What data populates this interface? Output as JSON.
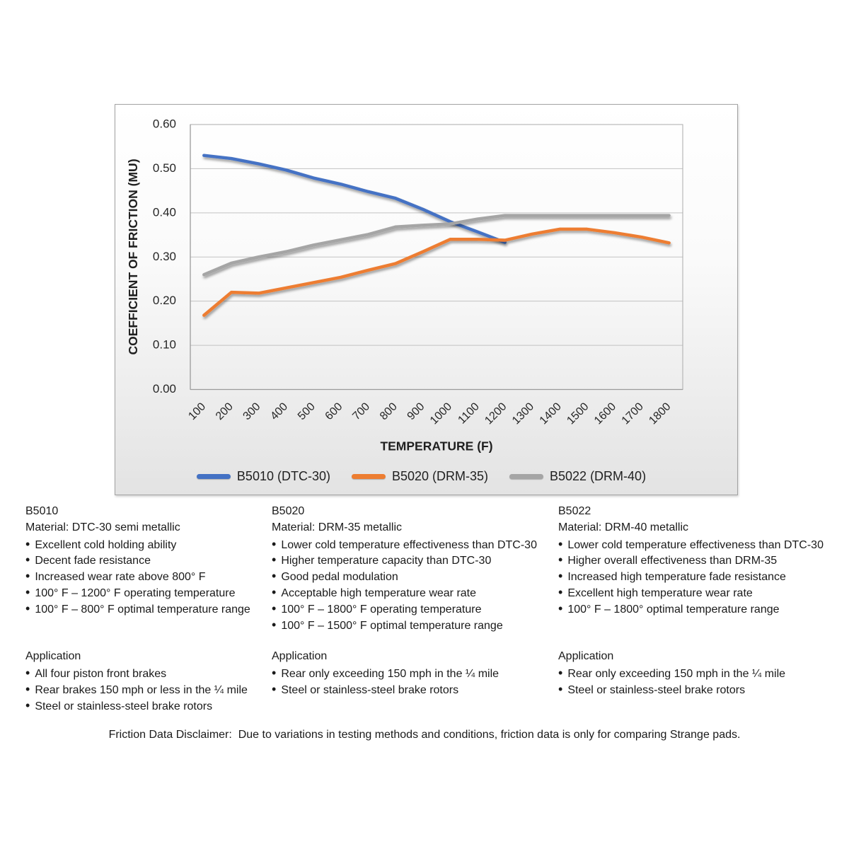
{
  "chart_data": {
    "type": "line",
    "xlabel": "TEMPERATURE (F)",
    "ylabel": "COEFFICIENT OF FRICTION (MU)",
    "ylim": [
      0,
      0.6
    ],
    "ytick_step": 0.1,
    "grid": "horizontal",
    "legend_position": "bottom",
    "categories": [
      "100",
      "200",
      "300",
      "400",
      "500",
      "600",
      "700",
      "800",
      "900",
      "1000",
      "1100",
      "1200",
      "1300",
      "1400",
      "1500",
      "1600",
      "1700",
      "1800"
    ],
    "series": [
      {
        "name": "B5010 (DTC-30)",
        "color": "#4472C4",
        "values": [
          0.53,
          0.523,
          0.511,
          0.497,
          0.479,
          0.465,
          0.448,
          0.433,
          0.408,
          0.38,
          0.357,
          0.333
        ]
      },
      {
        "name": "B5020 (DRM-35)",
        "color": "#ED7D31",
        "values": [
          0.168,
          0.22,
          0.218,
          0.23,
          0.242,
          0.254,
          0.27,
          0.285,
          0.312,
          0.34,
          0.34,
          0.338,
          0.352,
          0.363,
          0.363,
          0.355,
          0.345,
          0.332
        ]
      },
      {
        "name": "B5022 (DRM-40)",
        "color": "#A5A5A5",
        "values": [
          0.26,
          0.286,
          0.3,
          0.312,
          0.327,
          0.339,
          0.351,
          0.368,
          0.372,
          0.375,
          0.386,
          0.394,
          0.394,
          0.394,
          0.394,
          0.394,
          0.394,
          0.394
        ]
      }
    ]
  },
  "panels": [
    {
      "title": "B5010",
      "material": "Material: DTC-30 semi metallic",
      "bullets": [
        "• Excellent cold holding ability",
        "• Decent fade resistance",
        "• Increased wear rate above 800° F",
        "• 100° F – 1200° F operating temperature",
        "• 100° F – 800° F optimal temperature range"
      ],
      "application_title": "Application",
      "application_bullets": [
        "• All four piston front brakes",
        "• Rear brakes 150 mph or less in the ¼ mile",
        "• Steel or stainless-steel brake rotors"
      ]
    },
    {
      "title": "B5020",
      "material": "Material: DRM-35 metallic",
      "bullets": [
        "• Lower cold temperature effectiveness than DTC-30",
        "• Higher temperature capacity than DTC-30",
        "• Good pedal modulation",
        "• Acceptable high temperature wear rate",
        "• 100° F – 1800° F operating temperature",
        "• 100° F – 1500° F optimal temperature range"
      ],
      "application_title": "Application",
      "application_bullets": [
        "• Rear only exceeding 150 mph in the ¼ mile",
        "• Steel or stainless-steel brake rotors"
      ]
    },
    {
      "title": "B5022",
      "material": "Material: DRM-40 metallic",
      "bullets": [
        "• Lower cold temperature effectiveness than DTC-30",
        "• Higher overall effectiveness than DRM-35",
        "• Increased high temperature fade resistance",
        "• Excellent high temperature wear rate",
        "• 100° F – 1800° optimal temperature range"
      ],
      "application_title": "Application",
      "application_bullets": [
        "• Rear only exceeding 150 mph in the ¼ mile",
        "• Steel or stainless-steel brake rotors"
      ]
    }
  ],
  "disclaimer": "Friction Data Disclaimer:  Due to variations in testing methods and conditions, friction data is only for comparing Strange pads."
}
